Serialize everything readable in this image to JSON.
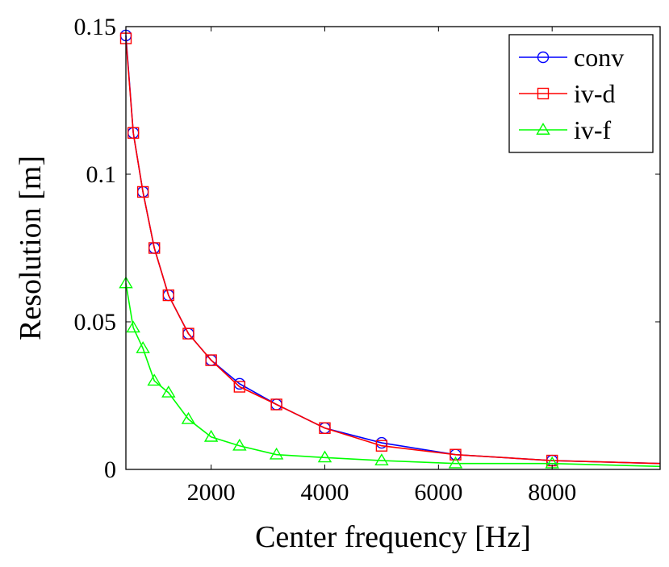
{
  "chart_data": {
    "type": "line",
    "title": "",
    "xlabel": "Center frequency [Hz]",
    "ylabel": "Resolution [m]",
    "xlim": [
      500,
      9900
    ],
    "ylim": [
      0,
      0.15
    ],
    "x_ticks": [
      2000,
      4000,
      6000,
      8000
    ],
    "x_tick_labels": [
      "2000",
      "4000",
      "6000",
      "8000"
    ],
    "y_ticks": [
      0,
      0.05,
      0.1,
      0.15
    ],
    "y_tick_labels": [
      "0",
      "0.05",
      "0.1",
      "0.15"
    ],
    "grid": false,
    "legend_position": "top-right",
    "series": [
      {
        "name": "conv",
        "color": "#0000ff",
        "marker": "circle",
        "x": [
          500,
          630,
          800,
          1000,
          1250,
          1600,
          2000,
          2500,
          3150,
          4000,
          5000,
          6300,
          8000,
          9900
        ],
        "y": [
          0.147,
          0.114,
          0.094,
          0.075,
          0.059,
          0.046,
          0.037,
          0.029,
          0.022,
          0.014,
          0.009,
          0.005,
          0.003,
          0.002
        ],
        "marker_count": 13
      },
      {
        "name": "iv-d",
        "color": "#ff0000",
        "marker": "square",
        "x": [
          500,
          630,
          800,
          1000,
          1250,
          1600,
          2000,
          2500,
          3150,
          4000,
          5000,
          6300,
          8000,
          9900
        ],
        "y": [
          0.146,
          0.114,
          0.094,
          0.075,
          0.059,
          0.046,
          0.037,
          0.028,
          0.022,
          0.014,
          0.008,
          0.005,
          0.003,
          0.002
        ],
        "marker_count": 13
      },
      {
        "name": "iv-f",
        "color": "#00ff00",
        "marker": "triangle",
        "x": [
          500,
          630,
          800,
          1000,
          1250,
          1600,
          2000,
          2500,
          3150,
          4000,
          5000,
          6300,
          8000,
          9900
        ],
        "y": [
          0.063,
          0.048,
          0.041,
          0.03,
          0.026,
          0.017,
          0.011,
          0.008,
          0.005,
          0.004,
          0.003,
          0.002,
          0.002,
          0.001
        ],
        "marker_count": 13
      }
    ]
  }
}
